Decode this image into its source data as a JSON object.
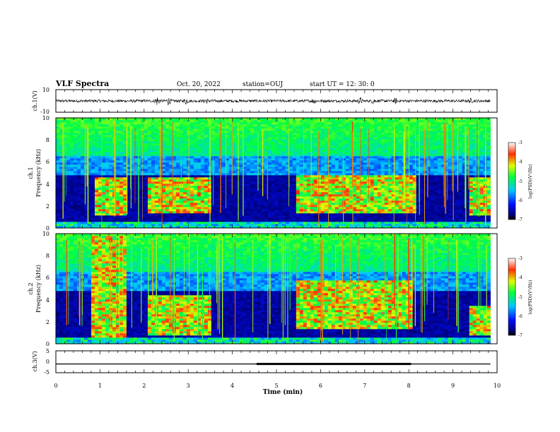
{
  "header": {
    "title": "VLF Spectra",
    "date": "Oct. 20, 2022",
    "station": "station=OUJ",
    "start_time": "start  UT =   12: 30: 0"
  },
  "chart_data": [
    {
      "type": "line",
      "name": "waveform-ch1",
      "ylabel": "ch.1(V)",
      "ylim": [
        -10,
        10
      ],
      "y_ticks": [
        "10",
        "-10"
      ],
      "x_range": [
        0,
        9.85
      ],
      "baseline": 0,
      "typical_amplitude": 1.2,
      "bursts": [
        {
          "t": 2.3,
          "amp": 4.5
        },
        {
          "t": 2.55,
          "amp": 3.5
        },
        {
          "t": 2.95,
          "amp": 3.2
        },
        {
          "t": 3.4,
          "amp": 2.8
        },
        {
          "t": 5.85,
          "amp": 2.5
        },
        {
          "t": 6.9,
          "amp": 3.0
        },
        {
          "t": 7.2,
          "amp": 2.8
        },
        {
          "t": 7.7,
          "amp": 2.5
        },
        {
          "t": 9.4,
          "amp": 2.2
        }
      ]
    },
    {
      "type": "heatmap",
      "name": "spectrogram-ch1",
      "ylabel": "ch.1 Frequency (kHz)",
      "ylabel_lines": [
        "ch.1",
        "Frequency  (kHz)"
      ],
      "ylim": [
        0,
        10
      ],
      "y_ticks": [
        "0",
        "2",
        "4",
        "6",
        "8",
        "10"
      ],
      "x_range": [
        0,
        9.85
      ],
      "colorbar": {
        "label": "log(PSD)(V²/Hz)",
        "range": [
          -7,
          -3
        ],
        "ticks": [
          "-3",
          "-4",
          "-5",
          "-6",
          "-7"
        ]
      },
      "emission_blocks": [
        {
          "t0": 0.85,
          "t1": 1.6,
          "f0": 1.2,
          "f1": 4.6
        },
        {
          "t0": 2.05,
          "t1": 3.5,
          "f0": 1.4,
          "f1": 4.7
        },
        {
          "t0": 5.45,
          "t1": 8.15,
          "f0": 1.3,
          "f1": 4.8
        },
        {
          "t0": 9.35,
          "t1": 9.85,
          "f0": 1.2,
          "f1": 4.6
        }
      ]
    },
    {
      "type": "heatmap",
      "name": "spectrogram-ch2",
      "ylabel": "ch.2 Frequency (kHz)",
      "ylabel_lines": [
        "ch.2",
        "Frequency  (kHz)"
      ],
      "ylim": [
        0,
        10
      ],
      "y_ticks": [
        "0",
        "2",
        "4",
        "6",
        "8",
        "10"
      ],
      "x_range": [
        0,
        9.85
      ],
      "colorbar": {
        "label": "log(PSD)(V²/Hz)",
        "range": [
          -7,
          -3
        ],
        "ticks": [
          "-3",
          "-4",
          "-5",
          "-6",
          "-7"
        ]
      },
      "emission_blocks": [
        {
          "t0": 0.8,
          "t1": 1.6,
          "f0": 0.5,
          "f1": 9.8
        },
        {
          "t0": 2.05,
          "t1": 3.5,
          "f0": 0.8,
          "f1": 4.5
        },
        {
          "t0": 5.45,
          "t1": 8.1,
          "f0": 1.3,
          "f1": 5.8
        },
        {
          "t0": 9.35,
          "t1": 9.85,
          "f0": 0.8,
          "f1": 3.5
        }
      ]
    },
    {
      "type": "line",
      "name": "waveform-ch3",
      "ylabel": "ch.3(V)",
      "ylim": [
        -5,
        5
      ],
      "y_ticks": [
        "5",
        "0",
        "-5"
      ],
      "x_range": [
        0,
        9.85
      ],
      "level": -1.0,
      "thick_segment": [
        4.55,
        8.05
      ]
    }
  ],
  "x_axis": {
    "label": "Time  (min)",
    "ticks": [
      "0",
      "1",
      "2",
      "3",
      "4",
      "5",
      "6",
      "7",
      "8",
      "9",
      "10"
    ],
    "range": [
      0,
      10
    ]
  }
}
